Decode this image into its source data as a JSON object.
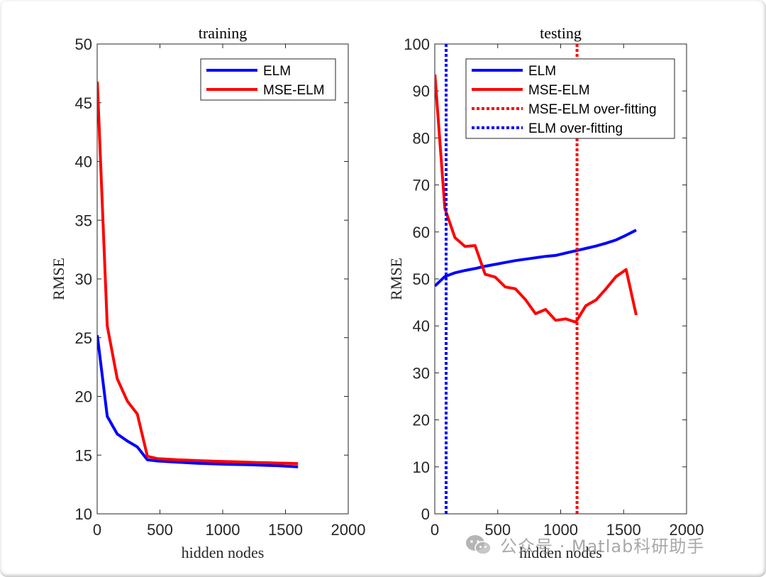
{
  "charts": [
    {
      "type": "line",
      "title": "training",
      "xlabel": "hidden nodes",
      "ylabel": "RMSE",
      "xlim": [
        0,
        2000
      ],
      "ylim": [
        10,
        50
      ],
      "xticks": [
        0,
        500,
        1000,
        1500,
        2000
      ],
      "yticks": [
        10,
        15,
        20,
        25,
        30,
        35,
        40,
        45,
        50
      ],
      "legend_position": "top-right",
      "series": [
        {
          "name": "ELM",
          "color": "#0000ff",
          "style": "solid",
          "x": [
            1,
            80,
            160,
            240,
            320,
            400,
            480,
            560,
            640,
            720,
            800,
            880,
            960,
            1040,
            1120,
            1200,
            1280,
            1360,
            1440,
            1520,
            1600
          ],
          "y": [
            25.2,
            18.3,
            16.8,
            16.2,
            15.7,
            14.6,
            14.5,
            14.45,
            14.4,
            14.35,
            14.3,
            14.28,
            14.25,
            14.22,
            14.2,
            14.18,
            14.15,
            14.12,
            14.1,
            14.05,
            14.0
          ]
        },
        {
          "name": "MSE-ELM",
          "color": "#ff0000",
          "style": "solid",
          "x": [
            1,
            80,
            160,
            240,
            320,
            400,
            480,
            560,
            640,
            720,
            800,
            880,
            960,
            1040,
            1120,
            1200,
            1280,
            1360,
            1440,
            1520,
            1600
          ],
          "y": [
            46.8,
            26.0,
            21.5,
            19.6,
            18.5,
            14.9,
            14.7,
            14.65,
            14.6,
            14.57,
            14.53,
            14.5,
            14.47,
            14.45,
            14.42,
            14.4,
            14.37,
            14.35,
            14.32,
            14.3,
            14.28
          ]
        }
      ]
    },
    {
      "type": "line",
      "title": "testing",
      "xlabel": "hidden nodes",
      "ylabel": "RMSE",
      "xlim": [
        0,
        2000
      ],
      "ylim": [
        0,
        100
      ],
      "xticks": [
        0,
        500,
        1000,
        1500,
        2000
      ],
      "yticks": [
        0,
        10,
        20,
        30,
        40,
        50,
        60,
        70,
        80,
        90,
        100
      ],
      "legend_position": "top-left",
      "series": [
        {
          "name": "ELM",
          "color": "#0000ff",
          "style": "solid",
          "x": [
            1,
            80,
            160,
            240,
            320,
            400,
            480,
            560,
            640,
            720,
            800,
            880,
            960,
            1040,
            1120,
            1200,
            1280,
            1360,
            1440,
            1520,
            1600
          ],
          "y": [
            48.5,
            50.5,
            51.3,
            51.8,
            52.2,
            52.7,
            53.1,
            53.5,
            53.9,
            54.2,
            54.5,
            54.8,
            55.0,
            55.5,
            56.0,
            56.5,
            57.0,
            57.6,
            58.3,
            59.3,
            60.4
          ]
        },
        {
          "name": "MSE-ELM",
          "color": "#ff0000",
          "style": "solid",
          "x": [
            1,
            80,
            160,
            240,
            320,
            400,
            480,
            560,
            640,
            720,
            800,
            880,
            960,
            1040,
            1120,
            1200,
            1280,
            1360,
            1440,
            1520,
            1600
          ],
          "y": [
            93.5,
            65.0,
            58.8,
            56.9,
            57.1,
            51.0,
            50.4,
            48.3,
            47.9,
            45.6,
            42.6,
            43.5,
            41.2,
            41.5,
            40.8,
            44.3,
            45.5,
            47.9,
            50.5,
            52.0,
            42.3
          ]
        },
        {
          "name": "MSE-ELM over-fitting",
          "color": "#ff0000",
          "style": "dotted",
          "vline": 1130
        },
        {
          "name": "ELM over-fitting",
          "color": "#0000ff",
          "style": "dotted",
          "vline": 90
        }
      ]
    }
  ],
  "watermark": {
    "text": "公众号 · Matlab科研助手"
  }
}
